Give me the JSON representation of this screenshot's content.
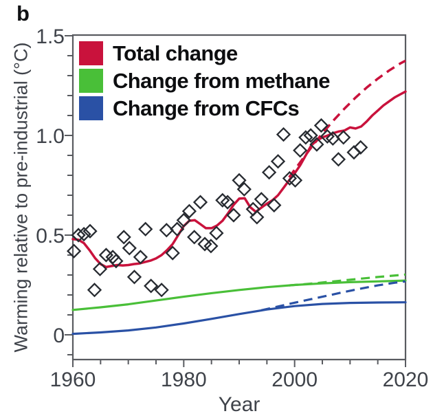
{
  "panel_label": "b",
  "colors": {
    "total_change": "#c9123c",
    "methane": "#49bf38",
    "cfcs": "#2a51a5",
    "axis": "#595b60",
    "tick_text": "#3f434a",
    "marker": "#272b31"
  },
  "legend": [
    {
      "label": "Total change",
      "color": "#c9123c"
    },
    {
      "label": "Change from methane",
      "color": "#49bf38"
    },
    {
      "label": "Change from CFCs",
      "color": "#2a51a5"
    }
  ],
  "axes": {
    "x": {
      "label": "Year",
      "major_ticks": [
        1960,
        1980,
        2000,
        2020
      ],
      "major_tick_labels": [
        "1960",
        "1980",
        "2000",
        "2020"
      ],
      "minor_ticks": [
        1965,
        1970,
        1975,
        1985,
        1990,
        1995,
        2005,
        2010,
        2015
      ]
    },
    "y": {
      "label": "Warming relative to pre-industrial (°C)",
      "major_ticks": [
        0,
        0.5,
        1.0,
        1.5
      ],
      "major_tick_labels": [
        "0",
        "0.5",
        "1.0",
        "1.5"
      ],
      "minor_ticks": [
        -0.1,
        0.1,
        0.2,
        0.3,
        0.4,
        0.6,
        0.7,
        0.8,
        0.9,
        1.1,
        1.2,
        1.3,
        1.4
      ]
    }
  },
  "chart_data": {
    "type": "line+scatter",
    "title": "",
    "xlabel": "Year",
    "ylabel": "Warming relative to pre-industrial (°C)",
    "xlim": [
      1960,
      2020
    ],
    "ylim": [
      -0.12,
      1.5
    ],
    "grid": false,
    "legend_position": "upper-left-inside",
    "series": [
      {
        "id": "methane-solid",
        "name": "Change from methane",
        "style": "solid",
        "color": "#49bf38",
        "width": 3.2,
        "points": [
          [
            1960,
            0.125
          ],
          [
            1965,
            0.138
          ],
          [
            1970,
            0.153
          ],
          [
            1975,
            0.172
          ],
          [
            1980,
            0.191
          ],
          [
            1985,
            0.209
          ],
          [
            1990,
            0.225
          ],
          [
            1995,
            0.239
          ],
          [
            2000,
            0.25
          ],
          [
            2005,
            0.258
          ],
          [
            2010,
            0.264
          ],
          [
            2015,
            0.268
          ],
          [
            2020,
            0.272
          ]
        ]
      },
      {
        "id": "methane-dashed",
        "name": "Change from methane (projection)",
        "style": "dashed",
        "color": "#49bf38",
        "width": 3.2,
        "points": [
          [
            1999,
            0.248
          ],
          [
            2003,
            0.257
          ],
          [
            2007,
            0.268
          ],
          [
            2011,
            0.279
          ],
          [
            2015,
            0.29
          ],
          [
            2020,
            0.302
          ]
        ]
      },
      {
        "id": "cfc-solid",
        "name": "Change from CFCs",
        "style": "solid",
        "color": "#2a51a5",
        "width": 3.2,
        "points": [
          [
            1960,
            0.005
          ],
          [
            1965,
            0.012
          ],
          [
            1970,
            0.022
          ],
          [
            1975,
            0.037
          ],
          [
            1980,
            0.057
          ],
          [
            1985,
            0.08
          ],
          [
            1990,
            0.104
          ],
          [
            1995,
            0.127
          ],
          [
            2000,
            0.144
          ],
          [
            2005,
            0.155
          ],
          [
            2010,
            0.16
          ],
          [
            2015,
            0.162
          ],
          [
            2020,
            0.163
          ]
        ]
      },
      {
        "id": "cfc-dashed",
        "name": "Change from CFCs (projection)",
        "style": "dashed",
        "color": "#2a51a5",
        "width": 3.2,
        "points": [
          [
            1994,
            0.123
          ],
          [
            1997,
            0.142
          ],
          [
            2000,
            0.161
          ],
          [
            2003,
            0.179
          ],
          [
            2006,
            0.197
          ],
          [
            2009,
            0.215
          ],
          [
            2012,
            0.232
          ],
          [
            2015,
            0.248
          ],
          [
            2018,
            0.261
          ],
          [
            2020,
            0.268
          ]
        ]
      },
      {
        "id": "total-solid",
        "name": "Total change",
        "style": "solid",
        "color": "#c9123c",
        "width": 3.5,
        "points": [
          [
            1960,
            0.48
          ],
          [
            1961,
            0.477
          ],
          [
            1962,
            0.46
          ],
          [
            1963,
            0.425
          ],
          [
            1964,
            0.385
          ],
          [
            1965,
            0.355
          ],
          [
            1966,
            0.34
          ],
          [
            1967,
            0.345
          ],
          [
            1968,
            0.35
          ],
          [
            1969,
            0.348
          ],
          [
            1970,
            0.35
          ],
          [
            1971,
            0.355
          ],
          [
            1972,
            0.358
          ],
          [
            1973,
            0.365
          ],
          [
            1974,
            0.372
          ],
          [
            1975,
            0.383
          ],
          [
            1976,
            0.4
          ],
          [
            1977,
            0.425
          ],
          [
            1978,
            0.455
          ],
          [
            1979,
            0.5
          ],
          [
            1980,
            0.545
          ],
          [
            1981,
            0.572
          ],
          [
            1982,
            0.575
          ],
          [
            1983,
            0.555
          ],
          [
            1984,
            0.535
          ],
          [
            1985,
            0.535
          ],
          [
            1986,
            0.548
          ],
          [
            1987,
            0.572
          ],
          [
            1988,
            0.61
          ],
          [
            1989,
            0.652
          ],
          [
            1990,
            0.683
          ],
          [
            1991,
            0.685
          ],
          [
            1992,
            0.64
          ],
          [
            1993,
            0.617
          ],
          [
            1994,
            0.638
          ],
          [
            1995,
            0.658
          ],
          [
            1996,
            0.675
          ],
          [
            1997,
            0.7
          ],
          [
            1998,
            0.737
          ],
          [
            1999,
            0.775
          ],
          [
            2000,
            0.81
          ],
          [
            2001,
            0.85
          ],
          [
            2002,
            0.9
          ],
          [
            2003,
            0.95
          ],
          [
            2004,
            0.975
          ],
          [
            2005,
            0.99
          ],
          [
            2006,
            1.0
          ],
          [
            2007,
            1.012
          ],
          [
            2008,
            1.02
          ],
          [
            2009,
            1.025
          ],
          [
            2010,
            1.04
          ],
          [
            2011,
            1.035
          ],
          [
            2012,
            1.045
          ],
          [
            2013,
            1.07
          ],
          [
            2014,
            1.1
          ],
          [
            2015,
            1.125
          ],
          [
            2016,
            1.15
          ],
          [
            2017,
            1.17
          ],
          [
            2018,
            1.19
          ],
          [
            2019,
            1.205
          ],
          [
            2020,
            1.22
          ]
        ]
      },
      {
        "id": "total-dashed",
        "name": "Total change (projection)",
        "style": "dashed",
        "color": "#c9123c",
        "width": 3.5,
        "points": [
          [
            1999,
            0.79
          ],
          [
            2001,
            0.865
          ],
          [
            2003,
            0.94
          ],
          [
            2005,
            1.01
          ],
          [
            2007,
            1.075
          ],
          [
            2009,
            1.135
          ],
          [
            2011,
            1.19
          ],
          [
            2013,
            1.24
          ],
          [
            2015,
            1.285
          ],
          [
            2017,
            1.325
          ],
          [
            2019,
            1.36
          ],
          [
            2020,
            1.375
          ]
        ]
      }
    ],
    "scatter": {
      "name": "Observed annual warming",
      "marker": "open-diamond",
      "color": "#272b31",
      "points": [
        [
          1960.2,
          0.42
        ],
        [
          1961,
          0.5
        ],
        [
          1962,
          0.505
        ],
        [
          1963.1,
          0.52
        ],
        [
          1963.9,
          0.225
        ],
        [
          1964.9,
          0.33
        ],
        [
          1966,
          0.4
        ],
        [
          1967.2,
          0.39
        ],
        [
          1967.8,
          0.37
        ],
        [
          1969.2,
          0.49
        ],
        [
          1970.2,
          0.435
        ],
        [
          1971.1,
          0.29
        ],
        [
          1972.2,
          0.39
        ],
        [
          1973.1,
          0.53
        ],
        [
          1974.1,
          0.245
        ],
        [
          1976,
          0.225
        ],
        [
          1976.9,
          0.525
        ],
        [
          1978,
          0.41
        ],
        [
          1978.8,
          0.53
        ],
        [
          1980,
          0.575
        ],
        [
          1981,
          0.62
        ],
        [
          1981.9,
          0.49
        ],
        [
          1983,
          0.665
        ],
        [
          1983.8,
          0.455
        ],
        [
          1984.9,
          0.445
        ],
        [
          1985.9,
          0.51
        ],
        [
          1987,
          0.675
        ],
        [
          1987.9,
          0.665
        ],
        [
          1989,
          0.6
        ],
        [
          1990,
          0.775
        ],
        [
          1990.9,
          0.73
        ],
        [
          1992.5,
          0.63
        ],
        [
          1993.2,
          0.59
        ],
        [
          1994,
          0.68
        ],
        [
          1995.4,
          0.815
        ],
        [
          1996.3,
          0.65
        ],
        [
          1997,
          0.87
        ],
        [
          1998,
          1.005
        ],
        [
          1999.1,
          0.785
        ],
        [
          2000.1,
          0.775
        ],
        [
          2001,
          0.925
        ],
        [
          2002,
          0.99
        ],
        [
          2002.9,
          1.0
        ],
        [
          2004,
          0.955
        ],
        [
          2004.8,
          1.05
        ],
        [
          2005.9,
          0.995
        ],
        [
          2006.9,
          0.985
        ],
        [
          2007.9,
          0.88
        ],
        [
          2008.8,
          0.99
        ],
        [
          2010.7,
          0.915
        ],
        [
          2011.9,
          0.94
        ]
      ]
    }
  }
}
